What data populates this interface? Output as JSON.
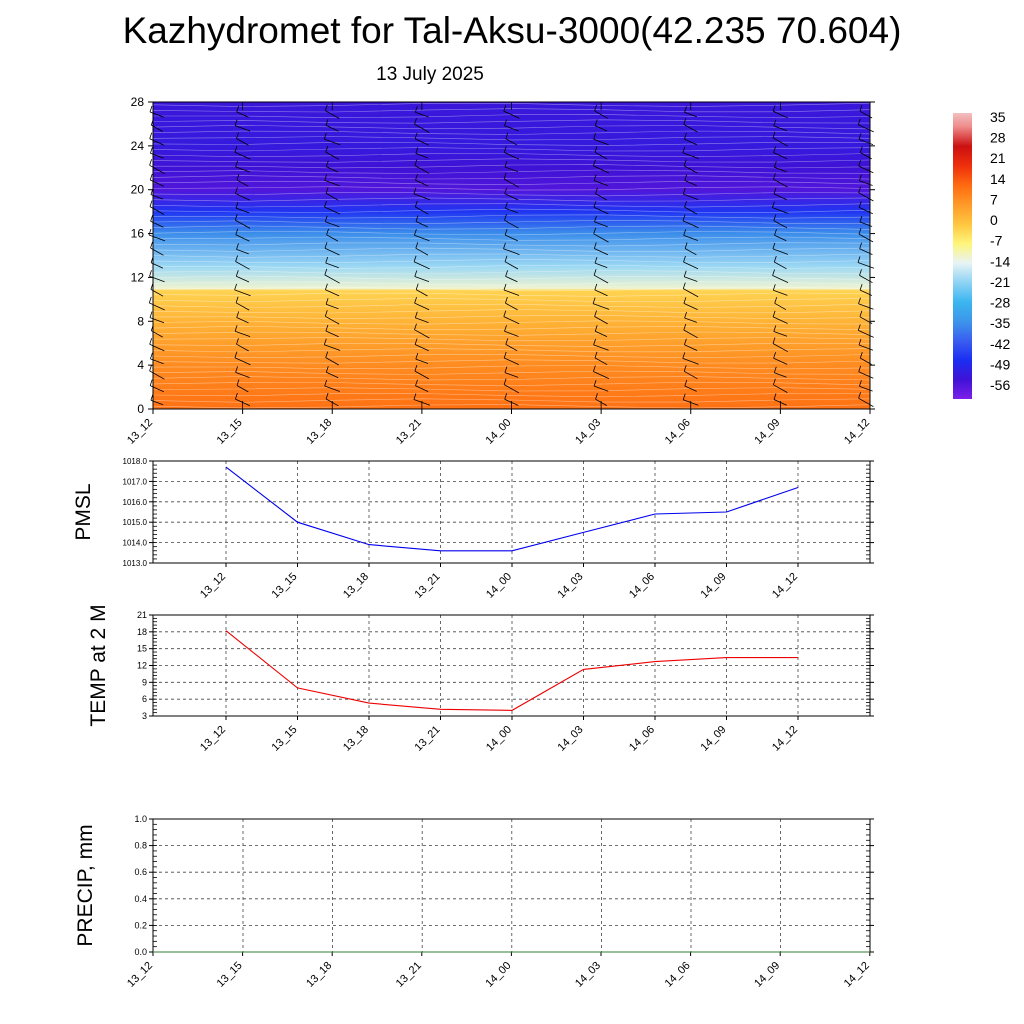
{
  "title": "Kazhydromet for Tal-Aksu-3000(42.235 70.604)",
  "subtitle": "13 July 2025",
  "chart_data": [
    {
      "type": "heatmap",
      "name": "temperature-wind-cross-section",
      "title": "",
      "xlabel": "",
      "ylabel": "",
      "x_labels": [
        "13_12",
        "13_15",
        "13_18",
        "13_21",
        "14_00",
        "14_03",
        "14_06",
        "14_09",
        "14_12"
      ],
      "yticks": [
        0,
        4,
        8,
        12,
        16,
        20,
        24,
        28
      ],
      "ylim": [
        0,
        28
      ],
      "value_by_height": [
        {
          "y": 0,
          "value": 13
        },
        {
          "y": 4,
          "value": 9
        },
        {
          "y": 8,
          "value": 3
        },
        {
          "y": 10.8,
          "value": -2
        },
        {
          "y": 11,
          "value": -12
        },
        {
          "y": 13,
          "value": -20
        },
        {
          "y": 16,
          "value": -36
        },
        {
          "y": 18,
          "value": -48
        },
        {
          "y": 20,
          "value": -58
        },
        {
          "y": 22,
          "value": -56
        },
        {
          "y": 24,
          "value": -54
        },
        {
          "y": 28,
          "value": -55
        }
      ],
      "colorbar": {
        "labels": [
          "35",
          "28",
          "21",
          "14",
          "7",
          "0",
          "-7",
          "-14",
          "-21",
          "-28",
          "-35",
          "-42",
          "-49",
          "-56"
        ],
        "stops": [
          {
            "value": -63,
            "color": "#7d1fe9"
          },
          {
            "value": -56,
            "color": "#3f12d6"
          },
          {
            "value": -49,
            "color": "#1b2ef2"
          },
          {
            "value": -42,
            "color": "#3a5ef0"
          },
          {
            "value": -35,
            "color": "#3c96ea"
          },
          {
            "value": -28,
            "color": "#3cb6f0"
          },
          {
            "value": -21,
            "color": "#8fd3f4"
          },
          {
            "value": -14,
            "color": "#e8f4f5"
          },
          {
            "value": -7,
            "color": "#fff57a"
          },
          {
            "value": 0,
            "color": "#ffc640"
          },
          {
            "value": 7,
            "color": "#ff9a28"
          },
          {
            "value": 14,
            "color": "#ff6a10"
          },
          {
            "value": 21,
            "color": "#ee2f0c"
          },
          {
            "value": 28,
            "color": "#cc1010"
          },
          {
            "value": 35,
            "color": "#ef8a8a"
          },
          {
            "value": 40,
            "color": "#f2c0c0"
          }
        ]
      },
      "wind_barbs": true
    },
    {
      "type": "line",
      "name": "pmsl",
      "ylabel": "PMSL",
      "x": [
        "13_12",
        "13_15",
        "13_18",
        "13_21",
        "14_00",
        "14_03",
        "14_06",
        "14_09",
        "14_12"
      ],
      "series": [
        {
          "values": [
            1017.7,
            1015.0,
            1013.9,
            1013.6,
            1013.6,
            1014.5,
            1015.4,
            1015.5,
            1016.7
          ],
          "color": "#0000ee"
        }
      ],
      "yticks": [
        "1013.0",
        "1014.0",
        "1015.0",
        "1016.0",
        "1017.0",
        "1018.0"
      ],
      "ylim": [
        1013.0,
        1018.0
      ],
      "grid": true
    },
    {
      "type": "line",
      "name": "temp-2m",
      "ylabel": "TEMP at 2 M",
      "x": [
        "13_12",
        "13_15",
        "13_18",
        "13_21",
        "14_00",
        "14_03",
        "14_06",
        "14_09",
        "14_12"
      ],
      "series": [
        {
          "values": [
            18.2,
            8.0,
            5.3,
            4.2,
            4.0,
            11.3,
            12.7,
            13.4,
            13.4
          ],
          "color": "#ee0000"
        }
      ],
      "yticks": [
        "3",
        "6",
        "9",
        "12",
        "15",
        "18",
        "21"
      ],
      "ylim": [
        3,
        21
      ],
      "grid": true
    },
    {
      "type": "line",
      "name": "precip",
      "ylabel": "PRECIP, mm",
      "x": [
        "13_12",
        "13_15",
        "13_18",
        "13_21",
        "14_00",
        "14_03",
        "14_06",
        "14_09",
        "14_12"
      ],
      "series": [
        {
          "values": [
            0,
            0,
            0,
            0,
            0,
            0,
            0,
            0,
            0
          ],
          "color": "#2e7d32"
        }
      ],
      "yticks": [
        "0.0",
        "0.2",
        "0.4",
        "0.6",
        "0.8",
        "1.0"
      ],
      "ylim": [
        0.0,
        1.0
      ],
      "grid": true
    }
  ]
}
